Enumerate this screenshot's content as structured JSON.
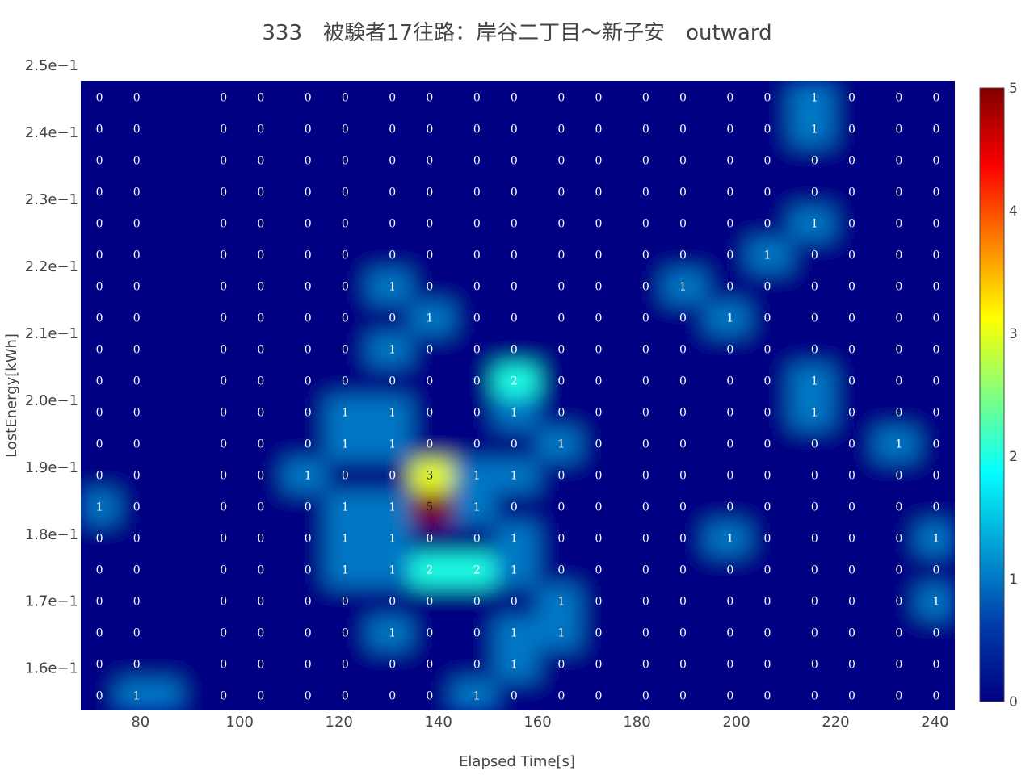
{
  "chart_data": {
    "type": "heatmap",
    "title": "333　被験者17往路：岸谷二丁目～新子安　outward",
    "xlabel": "Elapsed Time[s]",
    "ylabel": "LostEnergy[kWh]",
    "x_ticks": [
      "80",
      "100",
      "120",
      "140",
      "160",
      "180",
      "200",
      "220",
      "240"
    ],
    "x_tick_values": [
      80,
      100,
      120,
      140,
      160,
      180,
      200,
      220,
      240
    ],
    "y_ticks": [
      "1.6e−1",
      "1.7e−1",
      "1.8e−1",
      "1.9e−1",
      "2.0e−1",
      "2.1e−1",
      "2.2e−1",
      "2.3e−1",
      "2.4e−1",
      "2.5e−1"
    ],
    "y_tick_values": [
      0.16,
      0.17,
      0.18,
      0.19,
      0.2,
      0.21,
      0.22,
      0.23,
      0.24,
      0.25
    ],
    "x": [
      71.75,
      79.25,
      96.75,
      104.25,
      113.75,
      121.25,
      130.75,
      138.25,
      147.75,
      155.25,
      164.75,
      172.25,
      181.75,
      189.25,
      198.75,
      206.25,
      215.75,
      223.25,
      232.75,
      240.25
    ],
    "x_range": [
      68,
      244
    ],
    "y": [
      0.1559,
      0.1606,
      0.1653,
      0.17,
      0.1747,
      0.1794,
      0.1841,
      0.1888,
      0.1935,
      0.1982,
      0.2029,
      0.2076,
      0.2123,
      0.217,
      0.2217,
      0.2264,
      0.2311,
      0.2358,
      0.2405,
      0.2452
    ],
    "y_range": [
      0.1537,
      0.2477
    ],
    "z": [
      [
        0,
        1,
        0,
        0,
        0,
        0,
        0,
        0,
        1,
        0,
        0,
        0,
        0,
        0,
        0,
        0,
        0,
        0,
        0,
        0
      ],
      [
        0,
        0,
        0,
        0,
        0,
        0,
        0,
        0,
        0,
        1,
        0,
        0,
        0,
        0,
        0,
        0,
        0,
        0,
        0,
        0
      ],
      [
        0,
        0,
        0,
        0,
        0,
        0,
        1,
        0,
        0,
        1,
        1,
        0,
        0,
        0,
        0,
        0,
        0,
        0,
        0,
        0
      ],
      [
        0,
        0,
        0,
        0,
        0,
        0,
        0,
        0,
        0,
        0,
        1,
        0,
        0,
        0,
        0,
        0,
        0,
        0,
        0,
        1
      ],
      [
        0,
        0,
        0,
        0,
        0,
        1,
        1,
        2,
        2,
        1,
        0,
        0,
        0,
        0,
        0,
        0,
        0,
        0,
        0,
        0
      ],
      [
        0,
        0,
        0,
        0,
        0,
        1,
        1,
        0,
        0,
        1,
        0,
        0,
        0,
        0,
        1,
        0,
        0,
        0,
        0,
        1
      ],
      [
        1,
        0,
        0,
        0,
        0,
        1,
        1,
        5,
        1,
        0,
        0,
        0,
        0,
        0,
        0,
        0,
        0,
        0,
        0,
        0
      ],
      [
        0,
        0,
        0,
        0,
        1,
        0,
        0,
        3,
        1,
        1,
        0,
        0,
        0,
        0,
        0,
        0,
        0,
        0,
        0,
        0
      ],
      [
        0,
        0,
        0,
        0,
        0,
        1,
        1,
        0,
        0,
        0,
        1,
        0,
        0,
        0,
        0,
        0,
        0,
        0,
        1,
        0
      ],
      [
        0,
        0,
        0,
        0,
        0,
        1,
        1,
        0,
        0,
        1,
        0,
        0,
        0,
        0,
        0,
        0,
        1,
        0,
        0,
        0
      ],
      [
        0,
        0,
        0,
        0,
        0,
        0,
        0,
        0,
        0,
        2,
        0,
        0,
        0,
        0,
        0,
        0,
        1,
        0,
        0,
        0
      ],
      [
        0,
        0,
        0,
        0,
        0,
        0,
        1,
        0,
        0,
        0,
        0,
        0,
        0,
        0,
        0,
        0,
        0,
        0,
        0,
        0
      ],
      [
        0,
        0,
        0,
        0,
        0,
        0,
        0,
        1,
        0,
        0,
        0,
        0,
        0,
        0,
        1,
        0,
        0,
        0,
        0,
        0
      ],
      [
        0,
        0,
        0,
        0,
        0,
        0,
        1,
        0,
        0,
        0,
        0,
        0,
        0,
        1,
        0,
        0,
        0,
        0,
        0,
        0
      ],
      [
        0,
        0,
        0,
        0,
        0,
        0,
        0,
        0,
        0,
        0,
        0,
        0,
        0,
        0,
        0,
        1,
        0,
        0,
        0,
        0
      ],
      [
        0,
        0,
        0,
        0,
        0,
        0,
        0,
        0,
        0,
        0,
        0,
        0,
        0,
        0,
        0,
        0,
        1,
        0,
        0,
        0
      ],
      [
        0,
        0,
        0,
        0,
        0,
        0,
        0,
        0,
        0,
        0,
        0,
        0,
        0,
        0,
        0,
        0,
        0,
        0,
        0,
        0
      ],
      [
        0,
        0,
        0,
        0,
        0,
        0,
        0,
        0,
        0,
        0,
        0,
        0,
        0,
        0,
        0,
        0,
        0,
        0,
        0,
        0
      ],
      [
        0,
        0,
        0,
        0,
        0,
        0,
        0,
        0,
        0,
        0,
        0,
        0,
        0,
        0,
        0,
        0,
        1,
        0,
        0,
        0
      ],
      [
        0,
        0,
        0,
        0,
        0,
        0,
        0,
        0,
        0,
        0,
        0,
        0,
        0,
        0,
        0,
        0,
        1,
        0,
        0,
        0
      ]
    ],
    "zmin": 0,
    "zmax": 5,
    "colorscale": "Jet",
    "colorbar_ticks": [
      "0",
      "1",
      "2",
      "3",
      "4",
      "5"
    ],
    "colorbar_tick_values": [
      0,
      1,
      2,
      3,
      4,
      5
    ],
    "smoothing": "best",
    "grid": false,
    "show_cell_labels": true
  }
}
